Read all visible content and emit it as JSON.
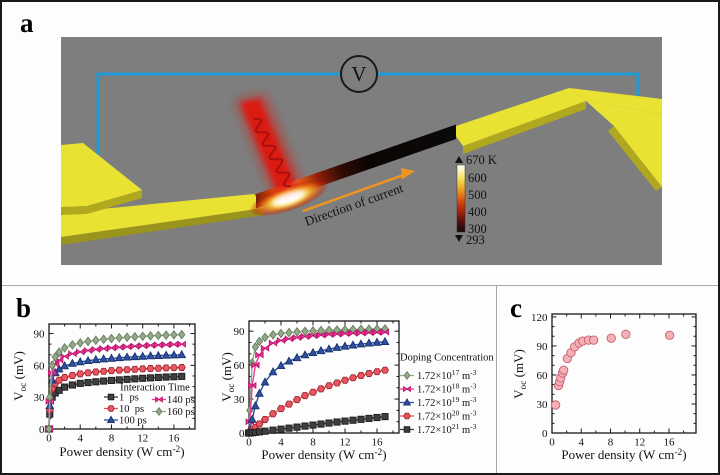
{
  "figure": {
    "panel_a_label": "a",
    "panel_b_label": "b",
    "panel_c_label": "c"
  },
  "schematic": {
    "voltmeter_label": "V",
    "current_arrow_label": "Direction of current",
    "colorbar": {
      "ticks": [
        "670 K",
        "600",
        "500",
        "400",
        "300",
        "293"
      ]
    },
    "colors": {
      "background": "#7e7e7e",
      "electrode": "#e9e232",
      "electrode_side": "#b0a81e",
      "wire": "#1e9ad6",
      "laser": "#e01408",
      "arrow": "#f09422"
    }
  },
  "chart_data": [
    {
      "type": "line",
      "xlabel": "Power density (W cm^{-2})",
      "ylabel": "V_{oc} (mV)",
      "xlim": [
        0,
        18.7
      ],
      "ylim": [
        0,
        99
      ],
      "xticks": [
        0,
        4,
        8,
        12,
        16
      ],
      "yticks": [
        0,
        30,
        60,
        90
      ],
      "xminor": 2,
      "yminor": 10,
      "legend_title": "Interaction Time",
      "legend_position": "inside-bottom-right",
      "x": [
        0,
        0.1,
        0.4,
        0.8,
        1.3,
        2,
        3,
        4,
        5,
        6,
        7,
        8,
        9,
        10,
        11,
        12,
        13,
        14,
        15,
        16,
        17
      ],
      "series": [
        {
          "name": "1  ps",
          "marker": "square",
          "color": "#3f3f3f",
          "edge": "#1a1a1a",
          "values": [
            0,
            14,
            30,
            34,
            36.5,
            39.5,
            41.5,
            43,
            43.8,
            44.5,
            45.2,
            45.8,
            46.3,
            46.8,
            47.3,
            47.8,
            48.2,
            48.6,
            49,
            49.3,
            49.6
          ]
        },
        {
          "name": "10  ps",
          "marker": "hexagon",
          "color": "#ea5560",
          "edge": "#a02630",
          "values": [
            0,
            18,
            38,
            43,
            46,
            48.5,
            50.5,
            52,
            53,
            53.8,
            54.4,
            55,
            55.5,
            55.9,
            56.3,
            56.7,
            57,
            57.3,
            57.6,
            57.8,
            58
          ]
        },
        {
          "name": "100 ps",
          "marker": "triangle",
          "color": "#2e509f",
          "edge": "#16306e",
          "values": [
            0,
            22,
            46,
            53,
            56.5,
            59.5,
            61.8,
            63.3,
            64.4,
            65.3,
            66,
            66.6,
            67.2,
            67.7,
            68.1,
            68.5,
            68.9,
            69.2,
            69.5,
            69.8,
            70
          ]
        },
        {
          "name": "140 ps",
          "marker": "bowtie",
          "color": "#ee3a96",
          "edge": "#b8156c",
          "values": [
            0,
            26,
            53,
            61,
            65,
            68.5,
            71,
            72.7,
            74,
            75,
            75.8,
            76.5,
            77.1,
            77.6,
            78.1,
            78.5,
            78.9,
            79.2,
            79.5,
            79.8,
            80
          ]
        },
        {
          "name": "160 ps",
          "marker": "diamond",
          "color": "#94aa88",
          "edge": "#647c5e",
          "values": [
            0,
            30,
            60,
            68,
            72.5,
            76.5,
            79.3,
            81.2,
            82.6,
            83.7,
            84.6,
            85.3,
            86,
            86.5,
            87,
            87.4,
            87.8,
            88.2,
            88.5,
            88.8,
            89
          ]
        }
      ]
    },
    {
      "type": "line",
      "xlabel": "Power density (W cm^{-2})",
      "ylabel": "V_{oc} (mV)",
      "xlim": [
        0,
        18.75
      ],
      "ylim": [
        0,
        99
      ],
      "xticks": [
        0,
        4,
        8,
        12,
        16
      ],
      "yticks": [
        0,
        30,
        60,
        90
      ],
      "xminor": 2,
      "yminor": 10,
      "legend_title": "Doping Concentration",
      "legend_position": "outside-right",
      "x": [
        0,
        0.1,
        0.4,
        0.8,
        1.3,
        2,
        3,
        4,
        5,
        6,
        7,
        8,
        9,
        10,
        11,
        12,
        13,
        14,
        15,
        16,
        17
      ],
      "series": [
        {
          "name": "1.72×10^{17} m^{-3}",
          "marker": "diamond",
          "color": "#94aa88",
          "edge": "#647c5e",
          "values": [
            0,
            20,
            62,
            76,
            81,
            84.5,
            86.8,
            88,
            88.8,
            89.4,
            89.9,
            90.3,
            90.6,
            90.9,
            91.1,
            91.3,
            91.5,
            91.7,
            91.8,
            91.9,
            92
          ]
        },
        {
          "name": "1.72×10^{18} m^{-3}",
          "marker": "bowtie",
          "color": "#ee3a96",
          "edge": "#b8156c",
          "values": [
            0,
            10,
            42,
            60,
            69,
            75,
            79.5,
            81.8,
            83.3,
            84.4,
            85.3,
            86,
            86.6,
            87.1,
            87.5,
            87.9,
            88.2,
            88.5,
            88.8,
            89,
            89.2
          ]
        },
        {
          "name": "1.72×10^{19} m^{-3}",
          "marker": "triangle",
          "color": "#2e509f",
          "edge": "#16306e",
          "values": [
            0,
            3,
            12,
            24,
            35,
            45,
            54,
            59.5,
            63.5,
            66.5,
            69,
            71,
            72.7,
            74.2,
            75.5,
            76.7,
            77.7,
            78.6,
            79.4,
            80.1,
            80.8
          ]
        },
        {
          "name": "1.72×10^{20} m^{-3}",
          "marker": "hexagon",
          "color": "#ea5560",
          "edge": "#a02630",
          "values": [
            0,
            0.5,
            2.5,
            5,
            8,
            12,
            17,
            21.5,
            25.5,
            29.5,
            33,
            36,
            39,
            41.8,
            44.3,
            46.6,
            48.8,
            50.8,
            52.6,
            54.2,
            55.5
          ]
        },
        {
          "name": "1.72×10^{21} m^{-3}",
          "marker": "square",
          "color": "#3f3f3f",
          "edge": "#1a1a1a",
          "values": [
            0,
            0,
            0.3,
            0.6,
            1,
            1.6,
            2.5,
            3.4,
            4.3,
            5.2,
            6.1,
            7,
            7.9,
            8.8,
            9.7,
            10.5,
            11.3,
            12.1,
            12.9,
            13.7,
            14.5
          ]
        }
      ]
    },
    {
      "type": "scatter",
      "xlabel": "Power density (W cm^{-2})",
      "ylabel": "V_{oc} (mV)",
      "xlim": [
        0,
        19.7
      ],
      "ylim": [
        0,
        123
      ],
      "xticks": [
        0,
        4,
        8,
        12,
        16
      ],
      "yticks": [
        0,
        30,
        60,
        90,
        120
      ],
      "xminor": 2,
      "yminor": 10,
      "marker": "circle",
      "marker_fill": "#f4afb7",
      "marker_edge": "#c4626e",
      "x": [
        0.5,
        0.9,
        1.05,
        1.2,
        1.45,
        1.6,
        2.1,
        2.6,
        3.1,
        3.7,
        4.2,
        5,
        5.7,
        8.1,
        10.1,
        16.1
      ],
      "y": [
        29,
        49,
        53,
        57,
        62,
        65,
        77,
        83,
        89,
        93,
        95,
        96,
        96,
        98,
        102,
        101
      ]
    }
  ]
}
